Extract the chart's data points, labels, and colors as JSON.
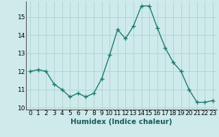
{
  "x": [
    0,
    1,
    2,
    3,
    4,
    5,
    6,
    7,
    8,
    9,
    10,
    11,
    12,
    13,
    14,
    15,
    16,
    17,
    18,
    19,
    20,
    21,
    22,
    23
  ],
  "y": [
    12.0,
    12.1,
    12.0,
    11.3,
    11.0,
    10.6,
    10.8,
    10.6,
    10.8,
    11.6,
    12.9,
    14.3,
    13.8,
    14.5,
    15.6,
    15.6,
    14.4,
    13.3,
    12.5,
    12.0,
    11.0,
    10.3,
    10.3,
    10.4
  ],
  "xlabel": "Humidex (Indice chaleur)",
  "line_color": "#1a7a6e",
  "marker_color": "#1a7a6e",
  "bg_color": "#ceeaea",
  "grid_color": "#b0d0d0",
  "xlim": [
    -0.5,
    23.5
  ],
  "ylim": [
    9.9,
    15.85
  ],
  "yticks": [
    10,
    11,
    12,
    13,
    14,
    15
  ],
  "xticks": [
    0,
    1,
    2,
    3,
    4,
    5,
    6,
    7,
    8,
    9,
    10,
    11,
    12,
    13,
    14,
    15,
    16,
    17,
    18,
    19,
    20,
    21,
    22,
    23
  ],
  "xlabel_fontsize": 7.5,
  "tick_fontsize": 6.5
}
